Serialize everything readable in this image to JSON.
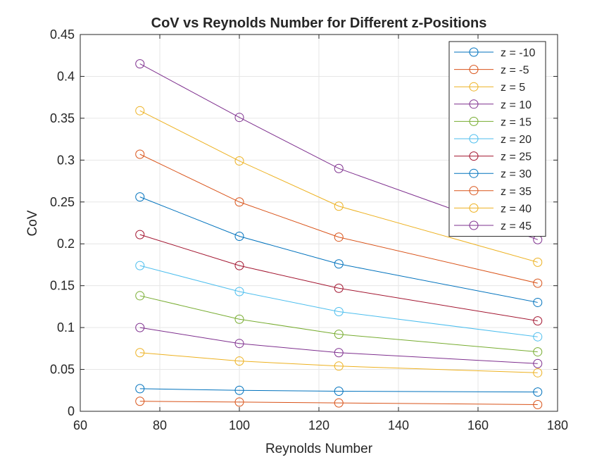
{
  "chart_data": {
    "type": "line",
    "title": "CoV vs Reynolds Number for Different z-Positions",
    "xlabel": "Reynolds Number",
    "ylabel": "CoV",
    "xlim": [
      60,
      180
    ],
    "ylim": [
      0,
      0.45
    ],
    "xticks": [
      "60",
      "80",
      "100",
      "120",
      "140",
      "160",
      "180"
    ],
    "yticks": [
      "0",
      "0.05",
      "0.1",
      "0.15",
      "0.2",
      "0.25",
      "0.3",
      "0.35",
      "0.4",
      "0.45"
    ],
    "grid": true,
    "legend_position": "top-right",
    "marker": "circle",
    "x": [
      75,
      100,
      125,
      175
    ],
    "series": [
      {
        "name": "z = -10",
        "color": "#0072BD",
        "values": [
          0.027,
          0.025,
          0.024,
          0.023
        ]
      },
      {
        "name": "z = -5",
        "color": "#D95319",
        "values": [
          0.012,
          0.011,
          0.01,
          0.008
        ]
      },
      {
        "name": "z = 5",
        "color": "#EDB120",
        "values": [
          0.07,
          0.06,
          0.054,
          0.046
        ]
      },
      {
        "name": "z = 10",
        "color": "#7E2F8E",
        "values": [
          0.1,
          0.081,
          0.07,
          0.057
        ]
      },
      {
        "name": "z = 15",
        "color": "#77AC30",
        "values": [
          0.138,
          0.11,
          0.092,
          0.071
        ]
      },
      {
        "name": "z = 20",
        "color": "#4DBEEE",
        "values": [
          0.174,
          0.143,
          0.119,
          0.089
        ]
      },
      {
        "name": "z = 25",
        "color": "#A2142F",
        "values": [
          0.211,
          0.174,
          0.147,
          0.108
        ]
      },
      {
        "name": "z = 30",
        "color": "#0072BD",
        "values": [
          0.256,
          0.209,
          0.176,
          0.13
        ]
      },
      {
        "name": "z = 35",
        "color": "#D95319",
        "values": [
          0.307,
          0.25,
          0.208,
          0.153
        ]
      },
      {
        "name": "z = 40",
        "color": "#EDB120",
        "values": [
          0.359,
          0.299,
          0.245,
          0.178
        ]
      },
      {
        "name": "z = 45",
        "color": "#7E2F8E",
        "values": [
          0.415,
          0.351,
          0.29,
          0.205
        ]
      }
    ]
  }
}
